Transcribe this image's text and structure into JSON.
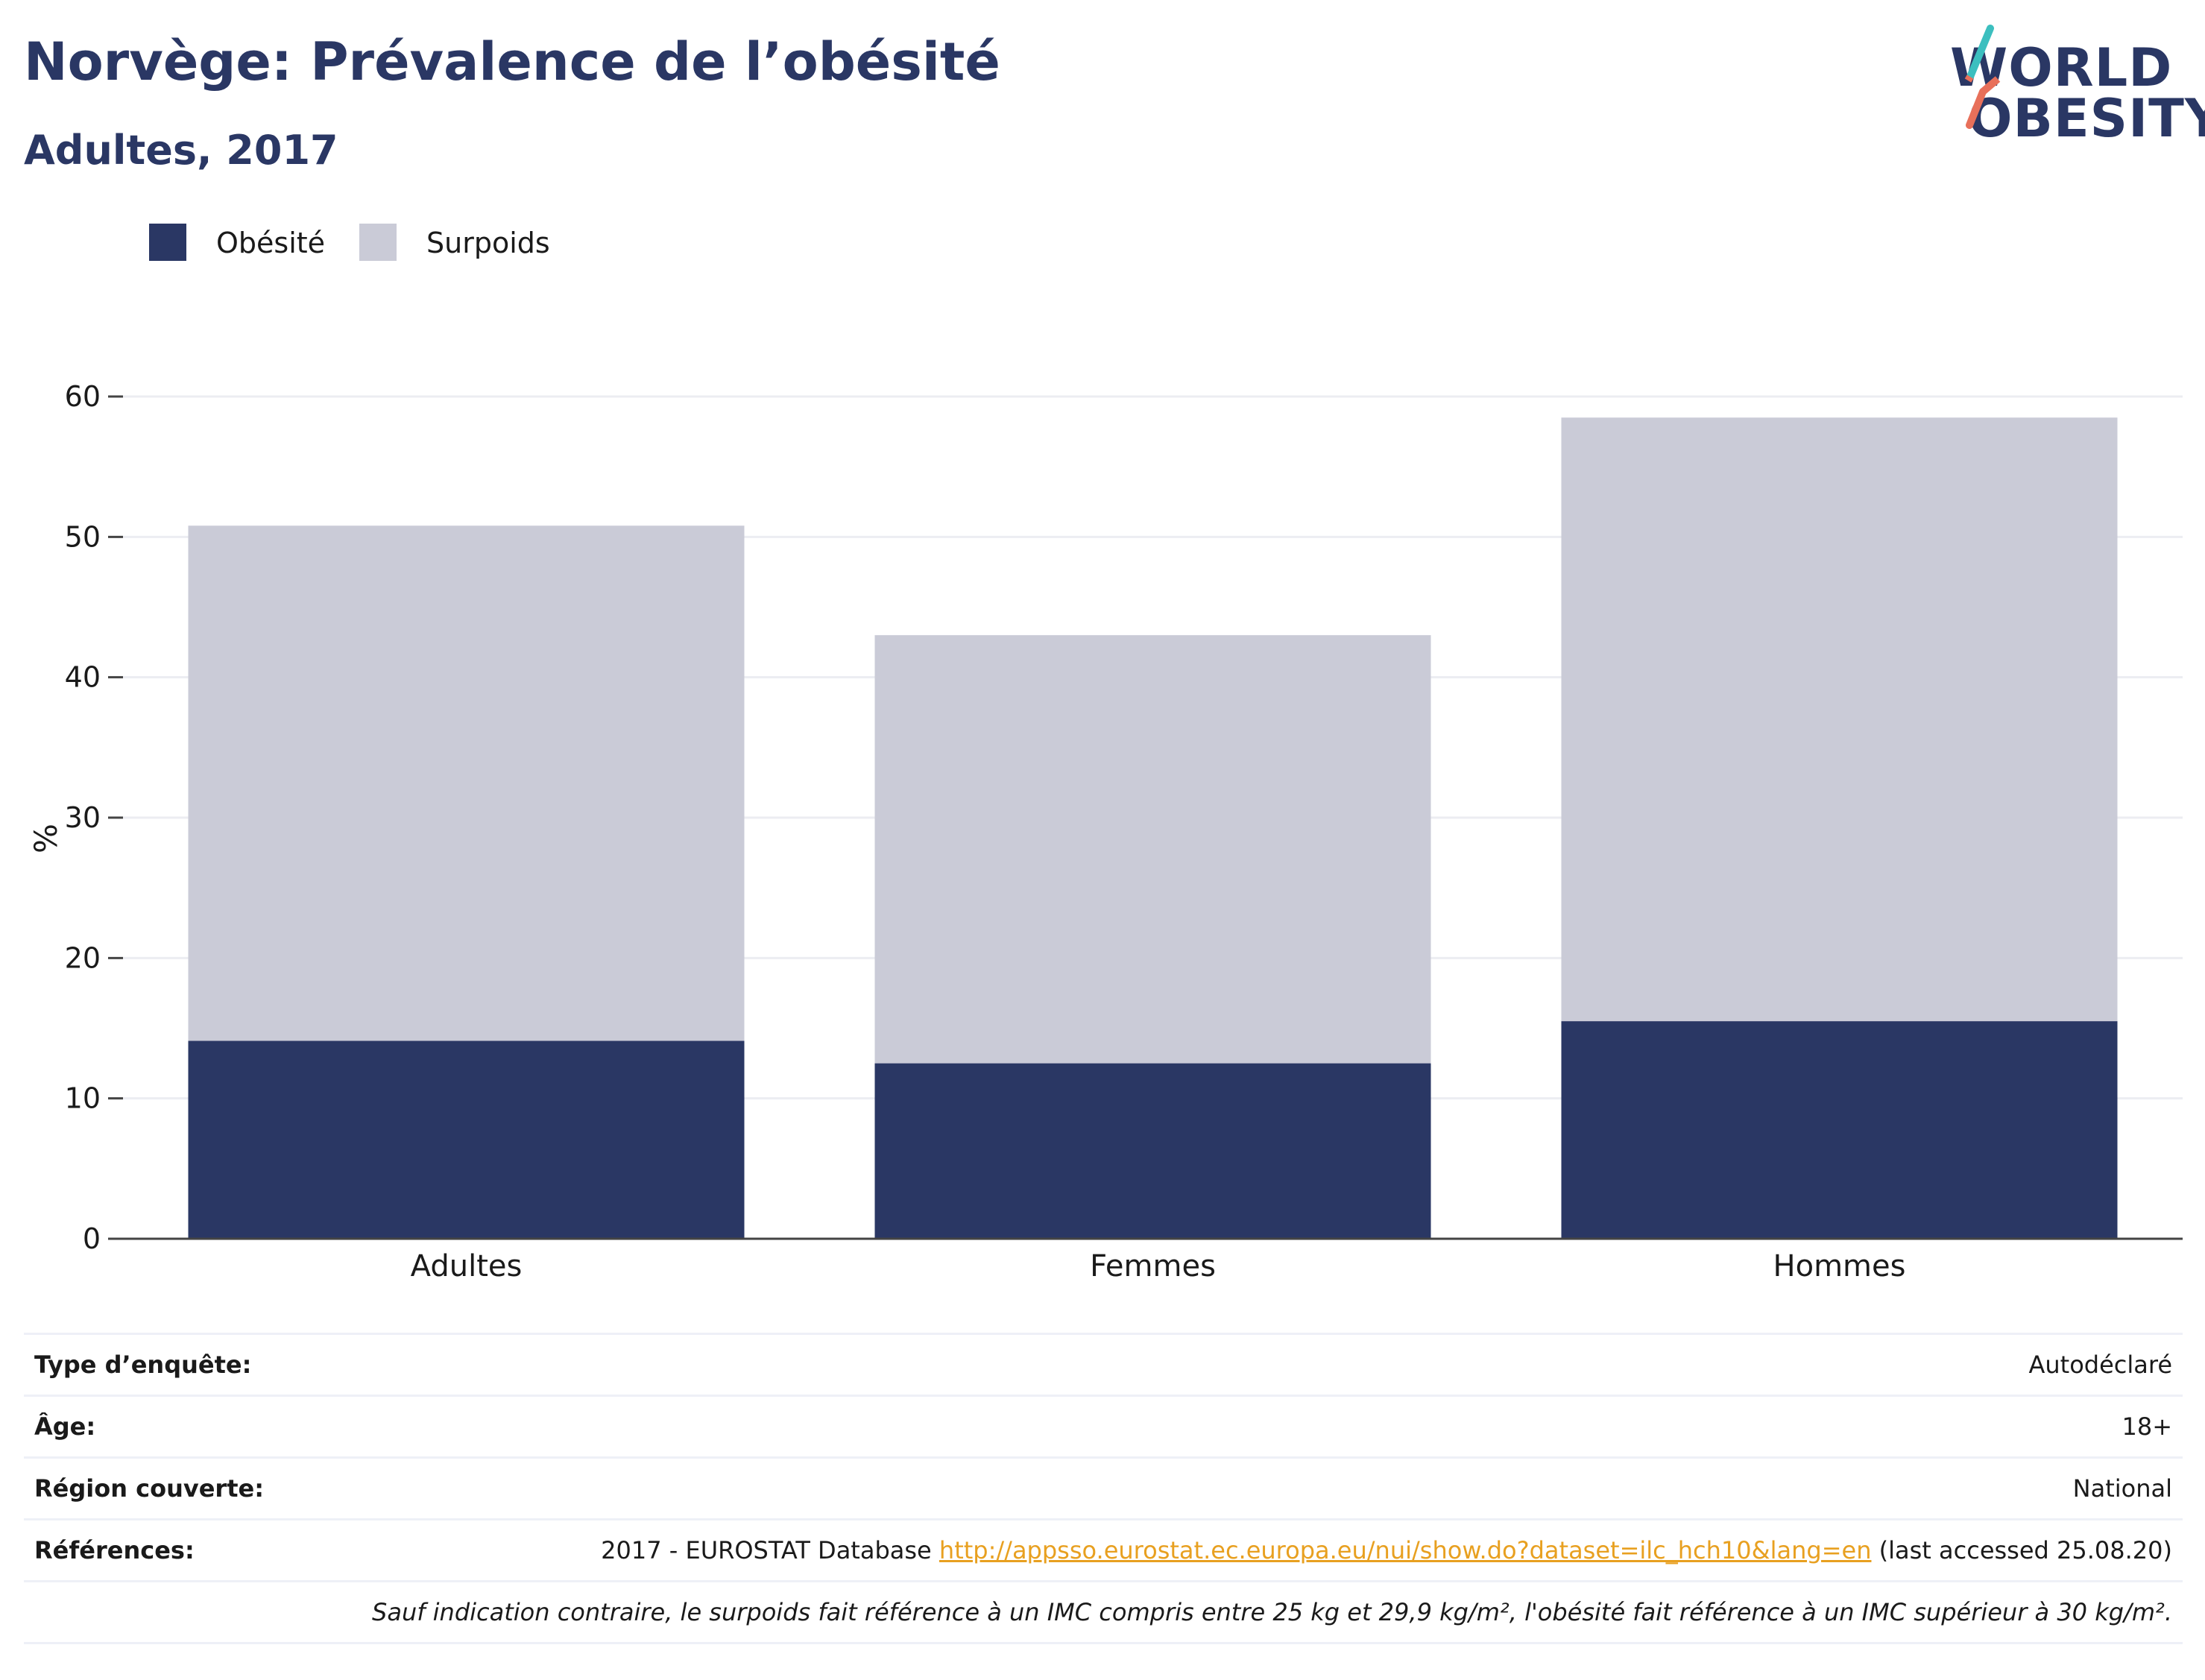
{
  "header": {
    "title": "Norvège: Prévalence de l’obésité",
    "subtitle": "Adultes, 2017"
  },
  "logo": {
    "line1": "WORLD",
    "line2": "OBESITY",
    "colors": {
      "slash_top": "#3cbfbf",
      "slash_bottom": "#e8705a",
      "text": "#2a3764"
    }
  },
  "legend": {
    "items": [
      {
        "label": "Obésité",
        "color": "#2a3764"
      },
      {
        "label": "Surpoids",
        "color": "#cacbd7"
      }
    ]
  },
  "chart_data": {
    "type": "bar",
    "stacked": true,
    "categories": [
      "Adultes",
      "Femmes",
      "Hommes"
    ],
    "series": [
      {
        "name": "Obésité",
        "values": [
          14.1,
          12.5,
          15.5
        ],
        "color": "#2a3764"
      },
      {
        "name": "Surpoids",
        "values": [
          36.7,
          30.5,
          43.0
        ],
        "color": "#cacbd7"
      }
    ],
    "ylabel": "%",
    "ylim": [
      0,
      60
    ],
    "yticks": [
      0,
      10,
      20,
      30,
      40,
      50,
      60
    ],
    "grid": true,
    "legend_position": "top-left"
  },
  "info": {
    "rows": [
      {
        "key": "Type d’enquête:",
        "value": "Autodéclaré"
      },
      {
        "key": "Âge:",
        "value": "18+"
      },
      {
        "key": "Région couverte:",
        "value": "National"
      },
      {
        "key": "Références:",
        "value_prefix": "2017 - EUROSTAT Database ",
        "link": "http://appsso.eurostat.ec.europa.eu/nui/show.do?dataset=ilc_hch10&lang=en",
        "value_suffix": " (last accessed 25.08.20)"
      }
    ],
    "note": "Sauf indication contraire, le surpoids fait référence à un IMC compris entre 25 kg et 29,9 kg/m², l'obésité fait référence à un IMC supérieur à 30 kg/m²."
  }
}
